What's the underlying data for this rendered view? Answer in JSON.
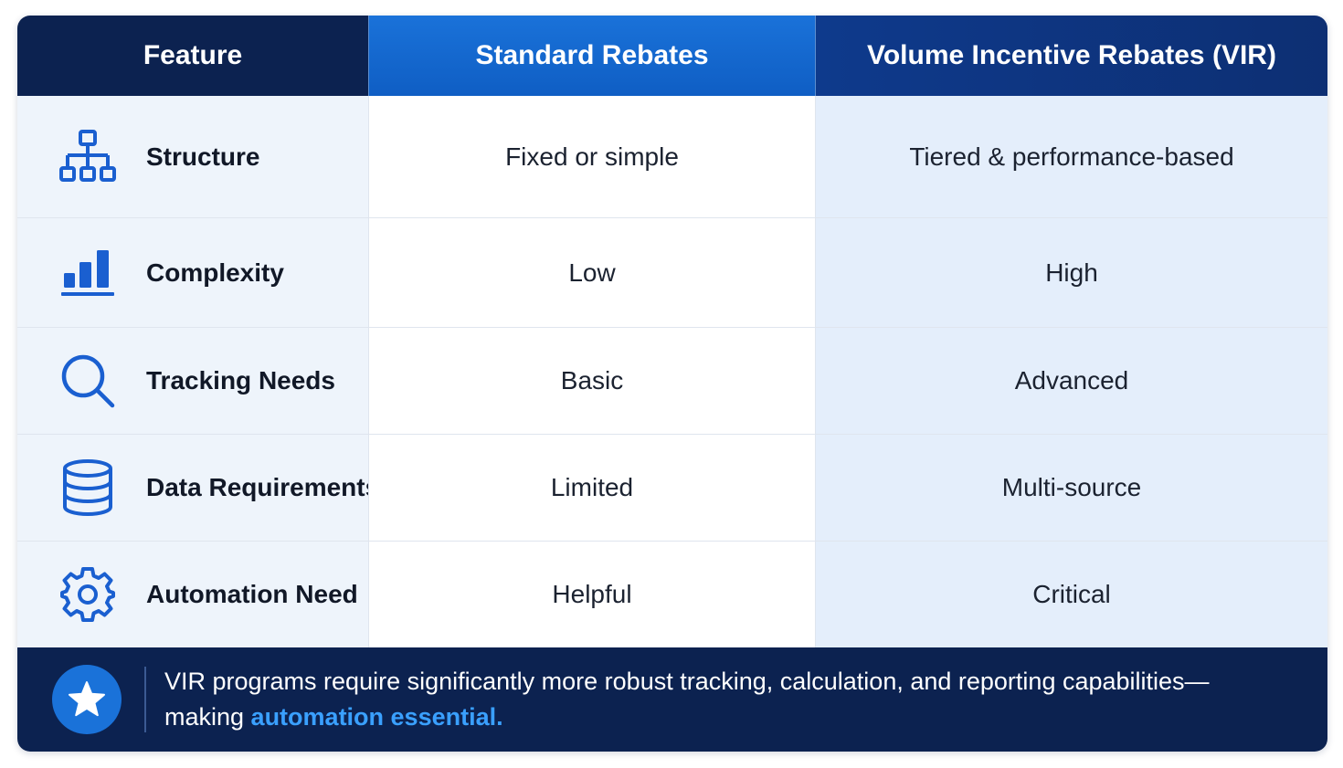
{
  "header": {
    "feature": "Feature",
    "standard": "Standard Rebates",
    "vir": "Volume Incentive Rebates (VIR)"
  },
  "rows": [
    {
      "icon": "hierarchy-icon",
      "feature": "Structure",
      "standard": "Fixed or simple",
      "vir": "Tiered & performance-based"
    },
    {
      "icon": "bar-chart-icon",
      "feature": "Complexity",
      "standard": "Low",
      "vir": "High"
    },
    {
      "icon": "search-icon",
      "feature": "Tracking Needs",
      "standard": "Basic",
      "vir": "Advanced"
    },
    {
      "icon": "database-icon",
      "feature": "Data Requirements",
      "standard": "Limited",
      "vir": "Multi-source"
    },
    {
      "icon": "gear-icon",
      "feature": "Automation Need",
      "standard": "Helpful",
      "vir": "Critical"
    }
  ],
  "footer": {
    "icon": "star-icon",
    "text_before": "VIR programs require significantly more robust tracking, calculation, and reporting capabilities—making ",
    "highlight": "automation essential."
  },
  "colors": {
    "navy": "#0c2250",
    "accent_blue": "#1a72d9",
    "highlight_blue": "#3aa0ff",
    "icon_blue": "#1a5fd0"
  }
}
